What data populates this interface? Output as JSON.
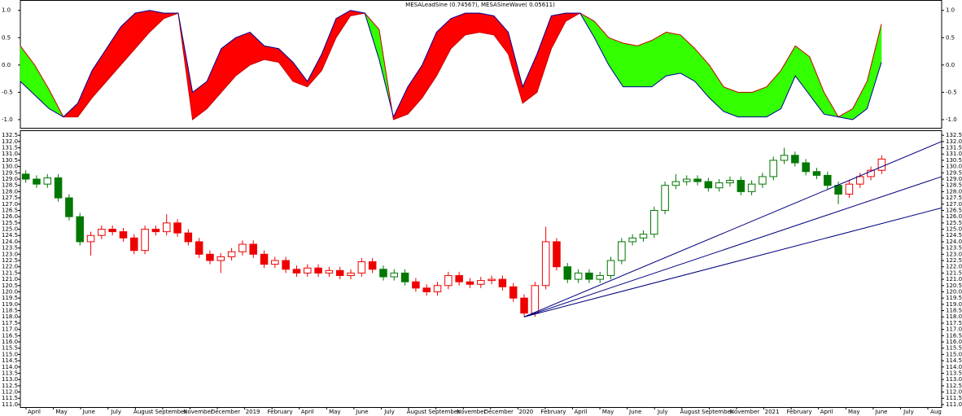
{
  "chart_data": [
    {
      "type": "sine-band",
      "title": "MESALeadSine (0.74567), MESASineWave( 0.05611)",
      "ylim": [
        -1.15,
        1.19
      ],
      "yticks": [
        {
          "value": 1,
          "label": "1.0"
        },
        0.5,
        {
          "value": 0,
          "label": "0.0"
        },
        -0.5,
        {
          "value": -1,
          "label": "-1.0"
        }
      ],
      "up_fill": "#33ff00",
      "down_fill": "#ff0000",
      "series": [
        {
          "name": "MESALeadSine",
          "color": "#cc0000",
          "values": [
            0.35,
            0.0,
            -0.45,
            -0.95,
            -0.95,
            -0.6,
            -0.3,
            0.0,
            0.3,
            0.6,
            0.85,
            0.95,
            -1.0,
            -0.8,
            -0.5,
            -0.2,
            0.0,
            0.1,
            0.05,
            -0.3,
            -0.4,
            -0.1,
            0.5,
            0.9,
            0.95,
            0.65,
            -1.0,
            -0.9,
            -0.6,
            -0.2,
            0.3,
            0.55,
            0.6,
            0.55,
            0.2,
            -0.7,
            -0.5,
            0.3,
            0.8,
            0.95,
            0.8,
            0.5,
            0.4,
            0.35,
            0.45,
            0.6,
            0.55,
            0.3,
            0.0,
            -0.4,
            -0.5,
            -0.5,
            -0.4,
            -0.1,
            0.35,
            0.15,
            -0.5,
            -0.95,
            -0.8,
            -0.3,
            0.75
          ]
        },
        {
          "name": "MESASineWave",
          "color": "#000099",
          "values": [
            -0.3,
            -0.55,
            -0.8,
            -0.95,
            -0.7,
            -0.1,
            0.3,
            0.7,
            0.95,
            1.0,
            0.95,
            0.95,
            -0.5,
            -0.3,
            0.3,
            0.5,
            0.6,
            0.35,
            0.3,
            0.05,
            -0.3,
            0.2,
            0.85,
            1.0,
            0.95,
            0.1,
            -0.95,
            -0.4,
            0.0,
            0.6,
            0.85,
            0.95,
            0.95,
            0.9,
            0.6,
            -0.4,
            0.2,
            0.9,
            0.95,
            0.95,
            0.5,
            0.0,
            -0.4,
            -0.4,
            -0.4,
            -0.2,
            -0.15,
            -0.3,
            -0.6,
            -0.85,
            -0.95,
            -0.95,
            -0.95,
            -0.8,
            -0.2,
            -0.55,
            -0.9,
            -0.95,
            -1.0,
            -0.8,
            0.05
          ]
        }
      ]
    },
    {
      "type": "candlestick",
      "ylim": [
        110.8,
        132.9
      ],
      "yticks": [
        {
          "value": 111,
          "label": "111.0"
        },
        111.5,
        {
          "value": 112,
          "label": "112.0"
        },
        112.5,
        {
          "value": 113,
          "label": "113.0"
        },
        113.5,
        {
          "value": 114,
          "label": "114.0"
        },
        114.5,
        {
          "value": 115,
          "label": "115.0"
        },
        115.5,
        {
          "value": 116,
          "label": "116.0"
        },
        116.5,
        {
          "value": 117,
          "label": "117.0"
        },
        117.5,
        {
          "value": 118,
          "label": "118.0"
        },
        118.5,
        {
          "value": 119,
          "label": "119.0"
        },
        119.5,
        {
          "value": 120,
          "label": "120.0"
        },
        120.5,
        {
          "value": 121,
          "label": "121.0"
        },
        121.5,
        {
          "value": 122,
          "label": "122.0"
        },
        122.5,
        {
          "value": 123,
          "label": "123.0"
        },
        123.5,
        {
          "value": 124,
          "label": "124.0"
        },
        124.5,
        {
          "value": 125,
          "label": "125.0"
        },
        125.5,
        {
          "value": 126,
          "label": "126.0"
        },
        126.5,
        {
          "value": 127,
          "label": "127.0"
        },
        127.5,
        {
          "value": 128,
          "label": "128.0"
        },
        128.5,
        {
          "value": 129,
          "label": "129.0"
        },
        129.5,
        {
          "value": 130,
          "label": "130.0"
        },
        130.5,
        {
          "value": 131,
          "label": "131.0"
        },
        131.5,
        {
          "value": 132,
          "label": "132.0"
        },
        132.5
      ],
      "x_labels": [
        "April",
        "May",
        "June",
        "July",
        "August",
        "September",
        "November",
        "December",
        "2019",
        "February",
        "April",
        "May",
        "June",
        "July",
        "August",
        "September",
        "November",
        "December",
        "2020",
        "February",
        "April",
        "May",
        "June",
        "July",
        "August",
        "September",
        "November",
        "2021",
        "February",
        "April",
        "May",
        "June",
        "July",
        "Aug"
      ],
      "open": [
        129.4,
        129.0,
        128.6,
        129.1,
        127.5,
        126.0,
        124.0,
        124.5,
        125.0,
        124.8,
        124.3,
        123.3,
        125.0,
        124.8,
        125.5,
        124.7,
        124.0,
        123.0,
        122.5,
        122.8,
        123.2,
        123.8,
        123.0,
        122.2,
        122.5,
        121.8,
        121.5,
        121.9,
        121.5,
        121.7,
        121.3,
        121.5,
        122.4,
        121.8,
        121.2,
        121.5,
        120.8,
        120.3,
        120.0,
        120.5,
        121.3,
        120.8,
        120.6,
        120.9,
        121.0,
        120.4,
        119.5,
        118.3,
        120.5,
        124.0,
        122.0,
        121.0,
        121.5,
        121.0,
        121.3,
        122.5,
        124.0,
        124.3,
        124.6,
        126.5,
        128.5,
        128.8,
        129.0,
        128.8,
        128.3,
        128.7,
        128.9,
        128.0,
        128.6,
        129.2,
        130.5,
        130.9,
        130.3,
        129.6,
        129.3,
        128.5,
        127.8,
        128.6,
        129.2,
        129.7
      ],
      "high": [
        129.7,
        129.3,
        129.4,
        129.4,
        127.8,
        126.3,
        124.8,
        125.3,
        125.3,
        125.1,
        124.6,
        125.3,
        125.3,
        126.2,
        125.8,
        125.0,
        124.3,
        123.3,
        123.1,
        123.5,
        124.1,
        124.1,
        123.3,
        122.8,
        122.8,
        122.1,
        122.2,
        122.2,
        122.0,
        122.0,
        121.8,
        122.7,
        122.7,
        122.1,
        121.8,
        121.8,
        121.1,
        120.6,
        120.8,
        121.6,
        121.6,
        121.1,
        121.2,
        121.3,
        121.3,
        120.7,
        119.8,
        120.8,
        125.2,
        124.3,
        122.3,
        121.8,
        121.8,
        121.6,
        122.8,
        124.3,
        124.6,
        124.9,
        126.8,
        128.8,
        129.4,
        129.3,
        129.3,
        129.1,
        129.0,
        129.2,
        129.2,
        128.9,
        129.5,
        130.8,
        131.5,
        131.2,
        130.6,
        129.9,
        129.6,
        128.8,
        128.9,
        129.5,
        130.0,
        130.9
      ],
      "low": [
        128.7,
        128.3,
        128.3,
        127.2,
        125.7,
        123.7,
        122.9,
        124.2,
        124.5,
        124.0,
        123.0,
        123.0,
        124.5,
        124.5,
        124.4,
        123.7,
        122.7,
        122.2,
        121.5,
        122.5,
        122.9,
        122.7,
        121.9,
        121.9,
        121.5,
        121.2,
        121.2,
        121.2,
        121.2,
        121.0,
        121.0,
        121.2,
        121.5,
        120.9,
        120.9,
        120.5,
        120.0,
        119.7,
        119.7,
        120.2,
        120.5,
        120.3,
        120.3,
        120.6,
        120.1,
        119.2,
        118.0,
        118.0,
        120.2,
        121.7,
        120.7,
        120.7,
        120.7,
        120.7,
        121.0,
        122.2,
        123.7,
        124.0,
        124.3,
        126.2,
        128.2,
        128.5,
        128.5,
        128.0,
        128.0,
        128.4,
        127.7,
        127.7,
        128.3,
        128.9,
        130.2,
        130.0,
        129.3,
        129.0,
        128.2,
        127.0,
        127.5,
        128.3,
        128.9,
        129.4
      ],
      "close": [
        129.0,
        128.6,
        129.1,
        127.5,
        126.0,
        124.0,
        124.5,
        125.0,
        124.8,
        124.3,
        123.3,
        125.0,
        124.8,
        125.5,
        124.7,
        124.0,
        123.0,
        122.5,
        122.8,
        123.2,
        123.8,
        123.0,
        122.2,
        122.5,
        121.8,
        121.5,
        121.9,
        121.5,
        121.7,
        121.3,
        121.5,
        122.4,
        121.8,
        121.2,
        121.5,
        120.8,
        120.3,
        120.0,
        120.5,
        121.3,
        120.8,
        120.6,
        120.9,
        121.0,
        120.4,
        119.5,
        118.3,
        120.5,
        124.0,
        122.0,
        121.0,
        121.5,
        121.0,
        121.3,
        122.5,
        124.0,
        124.3,
        124.6,
        126.5,
        128.5,
        128.8,
        129.0,
        128.8,
        128.3,
        128.7,
        128.9,
        128.0,
        128.6,
        129.2,
        130.5,
        130.9,
        130.3,
        129.6,
        129.3,
        128.5,
        127.8,
        128.6,
        129.2,
        129.7,
        130.6
      ],
      "colors": [
        "#007700",
        "#007700",
        "#007700",
        "#007700",
        "#007700",
        "#007700",
        "#ee0000",
        "#ee0000",
        "#ee0000",
        "#ee0000",
        "#ee0000",
        "#ee0000",
        "#ee0000",
        "#ee0000",
        "#ee0000",
        "#ee0000",
        "#ee0000",
        "#ee0000",
        "#ee0000",
        "#ee0000",
        "#ee0000",
        "#ee0000",
        "#ee0000",
        "#ee0000",
        "#ee0000",
        "#ee0000",
        "#ee0000",
        "#ee0000",
        "#ee0000",
        "#ee0000",
        "#ee0000",
        "#ee0000",
        "#ee0000",
        "#007700",
        "#007700",
        "#007700",
        "#ee0000",
        "#ee0000",
        "#ee0000",
        "#ee0000",
        "#ee0000",
        "#ee0000",
        "#ee0000",
        "#ee0000",
        "#ee0000",
        "#ee0000",
        "#ee0000",
        "#ee0000",
        "#ee0000",
        "#ee0000",
        "#007700",
        "#007700",
        "#007700",
        "#007700",
        "#007700",
        "#007700",
        "#007700",
        "#007700",
        "#007700",
        "#007700",
        "#007700",
        "#007700",
        "#007700",
        "#007700",
        "#007700",
        "#007700",
        "#007700",
        "#007700",
        "#007700",
        "#007700",
        "#007700",
        "#007700",
        "#007700",
        "#007700",
        "#007700",
        "#007700",
        "#ee0000",
        "#ee0000",
        "#ee0000",
        "#ee0000"
      ],
      "fan": {
        "origin_index": 46,
        "origin_price": 118.0,
        "end_prices": [
          132.0,
          129.2,
          126.7
        ],
        "color": "#000080"
      }
    }
  ]
}
